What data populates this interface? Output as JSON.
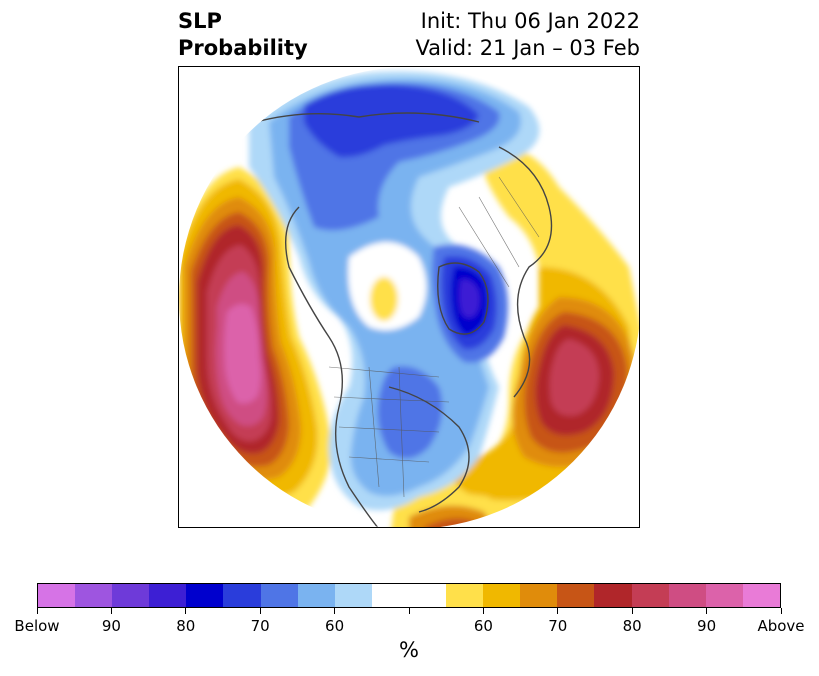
{
  "title": {
    "left_line1": "SLP",
    "left_line2": "Probability",
    "right_line1": "Init: Thu 06 Jan 2022",
    "right_line2": "Valid: 21 Jan – 03 Feb"
  },
  "colorbar": {
    "colors": [
      "#d673e6",
      "#9e55e0",
      "#6e3ad9",
      "#3d1fd4",
      "#0000cd",
      "#2a3ddb",
      "#4f75e6",
      "#7ab3f0",
      "#aed8f8",
      "#ffffff",
      "#ffffff",
      "#ffe04a",
      "#f0b800",
      "#e08c0b",
      "#c75516",
      "#b0262a",
      "#c43d55",
      "#cf4d83",
      "#dc62aa",
      "#e97bd7"
    ],
    "ticks": [
      {
        "label": "Below",
        "index": 0
      },
      {
        "label": "90",
        "index": 2
      },
      {
        "label": "80",
        "index": 4
      },
      {
        "label": "70",
        "index": 6
      },
      {
        "label": "60",
        "index": 8
      },
      {
        "label": "",
        "index": 10
      },
      {
        "label": "60",
        "index": 12
      },
      {
        "label": "70",
        "index": 14
      },
      {
        "label": "80",
        "index": 16
      },
      {
        "label": "90",
        "index": 18
      },
      {
        "label": "Above",
        "index": 20
      }
    ],
    "unit": "%"
  }
}
